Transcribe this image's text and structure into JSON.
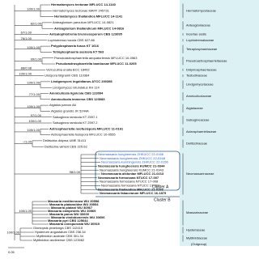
{
  "taxa": [
    "Hermatomyces tectonae MFLUCC 14-1140",
    "Hermatomyces tectonae MAFF 245731",
    "Hermatomyces thailandica MFLUCC 14-1141",
    "Anteaglonium parvulum MFLUCC 14-0821",
    "Anteaglonium thailandicum MFLUCC 14-0816",
    "Antealophiotrema brunneosporum CBS 123095",
    "Lophiotrema nucula CBS 627.86",
    "Polyplosphaeria fusca KT 1616",
    "Tetraplosphaeria sasicola KT 563",
    "Pseudoastrosphaeriella aequatoriensis MFLUCC 10-0563",
    "Pseudoastrosphaeriella bambusae MFLUCC 11-0205",
    "Verruculina enalia BCC 18402",
    "Ulospora bilgramii CBS 110364",
    "Lindgomyces ingoldianus ATCC 200398",
    "Lindgomyces rotundatus KH 114",
    "Amniculicola lignicola CBS 123094",
    "Amniculicola immersa CBS 123083",
    "Aigialus parvus A6",
    "Aigialus grandis JK 5244A",
    "Salsuginea ramicola KT 2597.1",
    "Salsuginea ramicola KT 2597.2",
    "Astrosphaeriella neofusispora MFLUCC 11-0161",
    "Astrosphaeriella fusispora MFLUCC 10-0555",
    "Delitschia didyma UME 31411",
    "Delitschia winteri CBS 225.62",
    "Neomassaria hongheensis ZHKUCC 22-0166",
    "Neomassaria hongheensis ZHKUCC 22-0168",
    "Neomassaria kunmingensis ZHKUCC 22-0156",
    "Neomassaria hongheensis KUMCC 21-0344",
    "Neomassaria hongheensis KUMCC 21-0343",
    "Neomassaria alstoniae MFLUCC 21-0213",
    "Neomassaria formosana NTUCC 17-007",
    "Neomassaria formosana NTUCC 17-008",
    "Neomassaria formosana NTUCC 17-009",
    "Neomassaria thailandica MFLUCC 21-0193",
    "Neomassaria fabacearum MFLUCC 16-1875",
    "Massaria mediterranea WU 30558",
    "Massaria platanoidea WU 30554",
    "Massaria platani WU 30567",
    "Massaria campestris WU 30569",
    "Massaria parva WU 30600",
    "Massaria vindobonensis WU 30606",
    "Massaria pyri CBS 125644",
    "Massaria conspurcata WU 30519",
    "Gloniopsis praelonga CBS 112415",
    "Hysterium angustatum CBS 236.34",
    "Mytilinidion australe CBS 301.34",
    "Mytilinidion andinense CBS 123562"
  ],
  "supports": [
    "100/1.00",
    "82/1.00",
    "67/1.00",
    "76/1.00",
    "100/1.00",
    "99/1.00",
    "88/0.98",
    "100/1.00",
    "100/1.00",
    "77/1.00",
    "100/1.00",
    "97/1.00",
    "100/1.00",
    "100/1.00",
    "~/1.00",
    "98/1.00",
    "100/1.00",
    "100/1.00"
  ],
  "families": [
    "Hermatomycetaceae",
    "Anteagloniaceae",
    "Incertae sedis",
    "Lophiotremataceae",
    "Tetraplosphaeriaceae",
    "Pseudoastrosphaeriellaceae",
    "Didymosphaeriaceae",
    "Testudinaceae",
    "Lindgomycetaceae",
    "Amniculicolaceae",
    "Aigialaceae",
    "Salsugineaceae",
    "Astrosphaeriellaceae",
    "Delitschiaceae",
    "Neomassarinaceae",
    "Massarinaceae",
    "Hysteriaceae",
    "Mytilinidiaceae",
    "(Outgroup)"
  ],
  "clusters": [
    "Cluster A",
    "Cluster B"
  ],
  "scale_bar": "0.05"
}
